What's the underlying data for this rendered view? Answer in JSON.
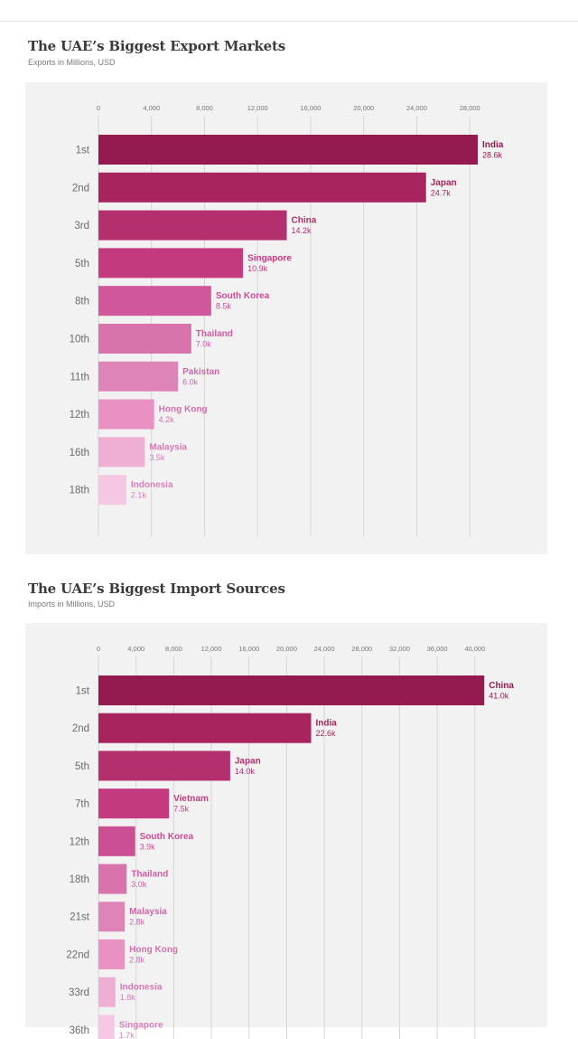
{
  "chart_data": [
    {
      "type": "bar",
      "title": "The UAE’s Biggest Export Markets",
      "subtitle": "Exports in Millions, USD",
      "ranks": [
        "1st",
        "2nd",
        "3rd",
        "5th",
        "8th",
        "10th",
        "11th",
        "12th",
        "16th",
        "18th"
      ],
      "categories": [
        "India",
        "Japan",
        "China",
        "Singapore",
        "South Korea",
        "Thailand",
        "Pakistan",
        "Hong Kong",
        "Malaysia",
        "Indonesia"
      ],
      "values": [
        28600,
        24700,
        14200,
        10900,
        8500,
        7000,
        6000,
        4200,
        3500,
        2100
      ],
      "value_labels": [
        "28.6k",
        "24.7k",
        "14.2k",
        "10.9k",
        "8.5k",
        "7.0k",
        "6.0k",
        "4.2k",
        "3.5k",
        "2.1k"
      ],
      "ticks": [
        0,
        4000,
        8000,
        12000,
        16000,
        20000,
        24000,
        28000
      ],
      "tick_labels": [
        "0",
        "4,000",
        "8,000",
        "12,000",
        "16,000",
        "20,000",
        "24,000",
        "28,000"
      ],
      "xlim": [
        0,
        32000
      ],
      "bar_colors": [
        "#951a4f",
        "#a8245e",
        "#b32f6d",
        "#c43a7f",
        "#d0579a",
        "#d873ac",
        "#df84b9",
        "#e991c3",
        "#efaed3",
        "#f5c7e2"
      ],
      "label_colors": [
        "#951a4f",
        "#a8245e",
        "#b32f6d",
        "#c43a7f",
        "#cc4e93",
        "#cc5ea0",
        "#cf67a7",
        "#d470ad",
        "#d67bb4",
        "#d682b8"
      ]
    },
    {
      "type": "bar",
      "title": "The UAE’s Biggest Import Sources",
      "subtitle": "Imports in Millions, USD",
      "ranks": [
        "1st",
        "2nd",
        "5th",
        "7th",
        "12th",
        "18th",
        "21st",
        "22nd",
        "33rd",
        "36th"
      ],
      "categories": [
        "China",
        "India",
        "Japan",
        "Vietnam",
        "South Korea",
        "Thailand",
        "Malaysia",
        "Hong Kong",
        "Indonesia",
        "Singapore"
      ],
      "values": [
        41000,
        22600,
        14000,
        7500,
        3900,
        3000,
        2800,
        2800,
        1800,
        1700
      ],
      "value_labels": [
        "41.0k",
        "22.6k",
        "14.0k",
        "7.5k",
        "3.9k",
        "3.0k",
        "2.8k",
        "2.8k",
        "1.8k",
        "1.7k"
      ],
      "ticks": [
        0,
        4000,
        8000,
        12000,
        16000,
        20000,
        24000,
        28000,
        32000,
        36000,
        40000
      ],
      "tick_labels": [
        "0",
        "4,000",
        "8,000",
        "12,000",
        "16,000",
        "20,000",
        "24,000",
        "28,000",
        "32,000",
        "36,000",
        "40,000"
      ],
      "xlim": [
        0,
        46000
      ],
      "bar_colors": [
        "#951a4f",
        "#a8245e",
        "#b32f6d",
        "#c43a7f",
        "#cc4e93",
        "#d873ac",
        "#df84b9",
        "#e991c3",
        "#efaed3",
        "#f5c7e2"
      ],
      "label_colors": [
        "#951a4f",
        "#a8245e",
        "#b32f6d",
        "#c43a7f",
        "#cc4e93",
        "#cc5ea0",
        "#cf67a7",
        "#d470ad",
        "#d67bb4",
        "#d682b8"
      ]
    }
  ]
}
